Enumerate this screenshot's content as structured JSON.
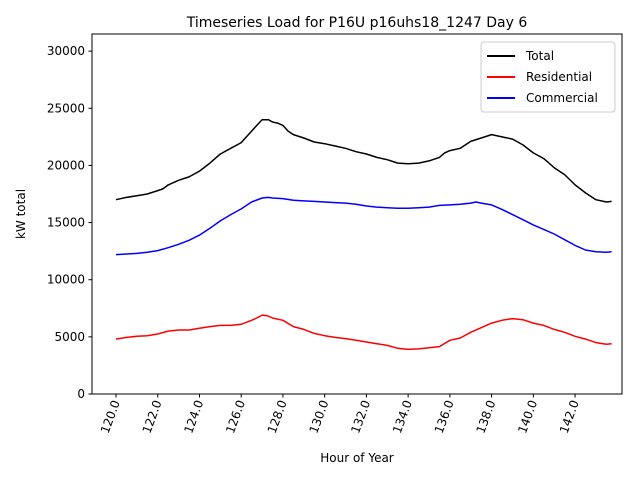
{
  "chart_data": {
    "type": "line",
    "title": "Timeseries Load for P16U p16uhs18_1247  Day 6",
    "xlabel": "Hour of Year",
    "ylabel": "kW total",
    "xlim": [
      118.85,
      144.25
    ],
    "ylim": [
      0,
      31500
    ],
    "x_ticks": [
      120,
      122,
      124,
      126,
      128,
      130,
      132,
      134,
      136,
      138,
      140,
      142
    ],
    "x_tick_labels": [
      "120.0",
      "122.0",
      "124.0",
      "126.0",
      "128.0",
      "130.0",
      "132.0",
      "134.0",
      "136.0",
      "138.0",
      "140.0",
      "142.0"
    ],
    "y_ticks": [
      0,
      5000,
      10000,
      15000,
      20000,
      25000,
      30000
    ],
    "y_tick_labels": [
      "0",
      "5000",
      "10000",
      "15000",
      "20000",
      "25000",
      "30000"
    ],
    "legend_position": "top-right",
    "series": [
      {
        "name": "Total",
        "color": "#000000",
        "points": [
          [
            120.0,
            17000
          ],
          [
            120.5,
            17200
          ],
          [
            121.0,
            17350
          ],
          [
            121.5,
            17500
          ],
          [
            122.0,
            17800
          ],
          [
            122.25,
            17950
          ],
          [
            122.5,
            18300
          ],
          [
            123.0,
            18700
          ],
          [
            123.5,
            19000
          ],
          [
            124.0,
            19500
          ],
          [
            124.5,
            20200
          ],
          [
            125.0,
            21000
          ],
          [
            125.5,
            21500
          ],
          [
            126.0,
            22000
          ],
          [
            126.5,
            23000
          ],
          [
            126.75,
            23500
          ],
          [
            127.0,
            24000
          ],
          [
            127.3,
            24000
          ],
          [
            127.5,
            23800
          ],
          [
            127.75,
            23700
          ],
          [
            128.0,
            23500
          ],
          [
            128.25,
            23000
          ],
          [
            128.5,
            22700
          ],
          [
            129.0,
            22400
          ],
          [
            129.5,
            22050
          ],
          [
            130.0,
            21900
          ],
          [
            130.5,
            21700
          ],
          [
            131.0,
            21500
          ],
          [
            131.5,
            21200
          ],
          [
            132.0,
            21000
          ],
          [
            132.5,
            20700
          ],
          [
            133.0,
            20500
          ],
          [
            133.5,
            20200
          ],
          [
            134.0,
            20150
          ],
          [
            134.5,
            20200
          ],
          [
            135.0,
            20400
          ],
          [
            135.5,
            20700
          ],
          [
            135.75,
            21100
          ],
          [
            136.0,
            21300
          ],
          [
            136.5,
            21500
          ],
          [
            137.0,
            22100
          ],
          [
            137.5,
            22400
          ],
          [
            138.0,
            22700
          ],
          [
            138.5,
            22500
          ],
          [
            139.0,
            22300
          ],
          [
            139.5,
            21800
          ],
          [
            140.0,
            21100
          ],
          [
            140.5,
            20600
          ],
          [
            141.0,
            19800
          ],
          [
            141.5,
            19200
          ],
          [
            142.0,
            18300
          ],
          [
            142.5,
            17600
          ],
          [
            143.0,
            17000
          ],
          [
            143.5,
            16800
          ],
          [
            143.75,
            16850
          ]
        ]
      },
      {
        "name": "Residential",
        "color": "#ff0000",
        "points": [
          [
            120.0,
            4800
          ],
          [
            120.5,
            4950
          ],
          [
            121.0,
            5050
          ],
          [
            121.5,
            5100
          ],
          [
            122.0,
            5250
          ],
          [
            122.5,
            5500
          ],
          [
            123.0,
            5600
          ],
          [
            123.5,
            5600
          ],
          [
            124.0,
            5750
          ],
          [
            124.5,
            5900
          ],
          [
            125.0,
            6000
          ],
          [
            125.5,
            6000
          ],
          [
            126.0,
            6100
          ],
          [
            126.5,
            6450
          ],
          [
            126.75,
            6650
          ],
          [
            127.0,
            6900
          ],
          [
            127.25,
            6850
          ],
          [
            127.5,
            6650
          ],
          [
            128.0,
            6450
          ],
          [
            128.5,
            5900
          ],
          [
            129.0,
            5650
          ],
          [
            129.5,
            5300
          ],
          [
            130.0,
            5100
          ],
          [
            130.5,
            4950
          ],
          [
            131.0,
            4850
          ],
          [
            131.5,
            4700
          ],
          [
            132.0,
            4550
          ],
          [
            132.5,
            4400
          ],
          [
            133.0,
            4250
          ],
          [
            133.5,
            4000
          ],
          [
            134.0,
            3900
          ],
          [
            134.5,
            3950
          ],
          [
            135.0,
            4050
          ],
          [
            135.5,
            4150
          ],
          [
            136.0,
            4700
          ],
          [
            136.5,
            4900
          ],
          [
            137.0,
            5400
          ],
          [
            137.5,
            5800
          ],
          [
            138.0,
            6200
          ],
          [
            138.5,
            6450
          ],
          [
            139.0,
            6600
          ],
          [
            139.5,
            6500
          ],
          [
            140.0,
            6200
          ],
          [
            140.5,
            6000
          ],
          [
            141.0,
            5650
          ],
          [
            141.5,
            5400
          ],
          [
            142.0,
            5050
          ],
          [
            142.5,
            4800
          ],
          [
            143.0,
            4500
          ],
          [
            143.5,
            4350
          ],
          [
            143.75,
            4400
          ]
        ]
      },
      {
        "name": "Commercial",
        "color": "#0000ff",
        "points": [
          [
            120.0,
            12200
          ],
          [
            120.5,
            12250
          ],
          [
            121.0,
            12300
          ],
          [
            121.5,
            12400
          ],
          [
            122.0,
            12550
          ],
          [
            122.5,
            12800
          ],
          [
            123.0,
            13100
          ],
          [
            123.5,
            13450
          ],
          [
            124.0,
            13900
          ],
          [
            124.5,
            14500
          ],
          [
            125.0,
            15150
          ],
          [
            125.5,
            15700
          ],
          [
            126.0,
            16200
          ],
          [
            126.5,
            16800
          ],
          [
            127.0,
            17150
          ],
          [
            127.3,
            17200
          ],
          [
            127.5,
            17150
          ],
          [
            128.0,
            17100
          ],
          [
            128.5,
            16950
          ],
          [
            129.0,
            16900
          ],
          [
            129.5,
            16850
          ],
          [
            130.0,
            16800
          ],
          [
            130.5,
            16750
          ],
          [
            131.0,
            16700
          ],
          [
            131.5,
            16600
          ],
          [
            132.0,
            16450
          ],
          [
            132.5,
            16350
          ],
          [
            133.0,
            16300
          ],
          [
            133.5,
            16250
          ],
          [
            134.0,
            16250
          ],
          [
            134.5,
            16300
          ],
          [
            135.0,
            16350
          ],
          [
            135.5,
            16500
          ],
          [
            136.0,
            16550
          ],
          [
            136.5,
            16600
          ],
          [
            137.0,
            16700
          ],
          [
            137.25,
            16800
          ],
          [
            137.5,
            16700
          ],
          [
            138.0,
            16550
          ],
          [
            138.5,
            16150
          ],
          [
            139.0,
            15700
          ],
          [
            139.5,
            15250
          ],
          [
            140.0,
            14800
          ],
          [
            140.5,
            14400
          ],
          [
            141.0,
            14000
          ],
          [
            141.5,
            13500
          ],
          [
            142.0,
            13000
          ],
          [
            142.5,
            12600
          ],
          [
            143.0,
            12450
          ],
          [
            143.5,
            12400
          ],
          [
            143.75,
            12450
          ]
        ]
      }
    ]
  }
}
